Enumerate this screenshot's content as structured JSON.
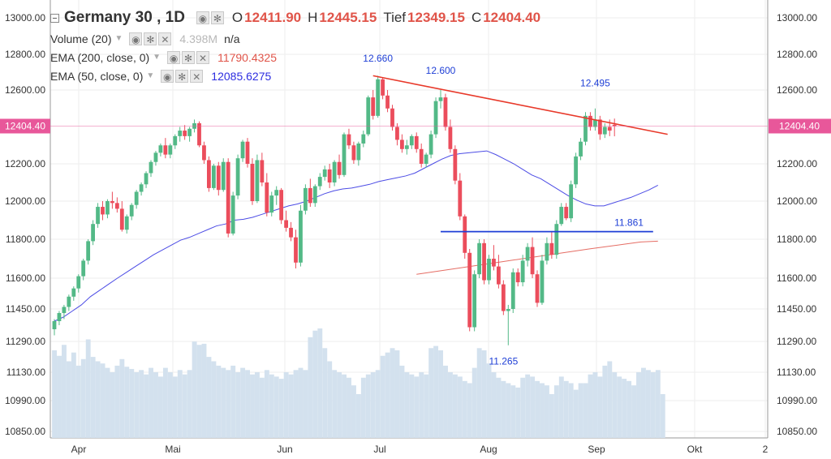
{
  "header": {
    "symbol_label": "Germany 30 , 1D",
    "ohlc": [
      {
        "key": "O",
        "value": "12411.90"
      },
      {
        "key": "H",
        "value": "12445.15"
      },
      {
        "key": "Tief",
        "value": "12349.15"
      },
      {
        "key": "C",
        "value": "12404.40"
      }
    ],
    "indicators": [
      {
        "label": "Volume (20)",
        "value": "4.398M",
        "value2": "n/a",
        "color": "#b8b8b8"
      },
      {
        "label": "EMA (200, close, 0)",
        "value": "11790.4325",
        "color": "#e05449"
      },
      {
        "label": "EMA (50, close, 0)",
        "value": "12085.6275",
        "color": "#2d2de0"
      }
    ]
  },
  "chart_data": {
    "type": "candlestick",
    "instrument": "Germany 30",
    "timeframe": "1D",
    "price_axis": {
      "ticks": [
        "13000.00",
        "12800.00",
        "12600.00",
        "12200.00",
        "12000.00",
        "11800.00",
        "11600.00",
        "11450.00",
        "11290.00",
        "11130.00",
        "10990.00",
        "10850.00"
      ],
      "values": [
        13000,
        12800,
        12600,
        12200,
        12000,
        11800,
        11600,
        11450,
        11290,
        11130,
        10990,
        10850
      ]
    },
    "time_axis": {
      "labels": [
        "Apr",
        "Mai",
        "Jun",
        "Jul",
        "Aug",
        "Sep",
        "Okt",
        "2"
      ]
    },
    "last_price": {
      "value": 12404.4,
      "label": "12404.40",
      "color": "#e8579a"
    },
    "colors": {
      "up": "#53b987",
      "down": "#eb4d5c",
      "volume": "#d3e1ee",
      "ema200": "#e05449",
      "ema50": "#2d2de0",
      "grid": "#eeeeee",
      "trendline": "#e8392a",
      "support": "#1f3fd6"
    },
    "candles": [
      [
        11350,
        11400,
        11320,
        11390
      ],
      [
        11390,
        11440,
        11370,
        11430
      ],
      [
        11430,
        11470,
        11400,
        11460
      ],
      [
        11460,
        11520,
        11440,
        11510
      ],
      [
        11510,
        11560,
        11490,
        11550
      ],
      [
        11550,
        11620,
        11530,
        11610
      ],
      [
        11610,
        11700,
        11590,
        11690
      ],
      [
        11690,
        11800,
        11670,
        11790
      ],
      [
        11790,
        11900,
        11770,
        11880
      ],
      [
        11880,
        11990,
        11860,
        11970
      ],
      [
        11970,
        12000,
        11900,
        11930
      ],
      [
        11930,
        12010,
        11910,
        12000
      ],
      [
        12000,
        12050,
        11960,
        11990
      ],
      [
        11990,
        12020,
        11940,
        11960
      ],
      [
        11960,
        12000,
        11840,
        11850
      ],
      [
        11850,
        11930,
        11830,
        11920
      ],
      [
        11920,
        11990,
        11900,
        11980
      ],
      [
        11980,
        12060,
        11960,
        12050
      ],
      [
        12050,
        12100,
        12030,
        12090
      ],
      [
        12090,
        12160,
        12070,
        12150
      ],
      [
        12150,
        12220,
        12130,
        12210
      ],
      [
        12210,
        12270,
        12190,
        12260
      ],
      [
        12260,
        12310,
        12240,
        12300
      ],
      [
        12300,
        12340,
        12230,
        12250
      ],
      [
        12250,
        12310,
        12230,
        12300
      ],
      [
        12300,
        12360,
        12280,
        12350
      ],
      [
        12350,
        12400,
        12320,
        12380
      ],
      [
        12380,
        12410,
        12330,
        12350
      ],
      [
        12350,
        12400,
        12320,
        12390
      ],
      [
        12390,
        12440,
        12370,
        12420
      ],
      [
        12420,
        12430,
        12290,
        12300
      ],
      [
        12300,
        12320,
        12200,
        12220
      ],
      [
        12220,
        12240,
        12050,
        12070
      ],
      [
        12070,
        12200,
        12060,
        12190
      ],
      [
        12190,
        12210,
        12030,
        12060
      ],
      [
        12060,
        12230,
        12050,
        12210
      ],
      [
        12210,
        12230,
        11810,
        11830
      ],
      [
        11830,
        12050,
        11820,
        12030
      ],
      [
        12030,
        12250,
        12010,
        12230
      ],
      [
        12230,
        12330,
        12210,
        12320
      ],
      [
        12320,
        12340,
        12180,
        12200
      ],
      [
        12200,
        12230,
        11980,
        12000
      ],
      [
        12000,
        12250,
        11990,
        12220
      ],
      [
        12220,
        12260,
        12080,
        12100
      ],
      [
        12100,
        12150,
        11920,
        11940
      ],
      [
        11940,
        12050,
        11920,
        12030
      ],
      [
        12030,
        12080,
        11980,
        12060
      ],
      [
        12060,
        12070,
        11880,
        11900
      ],
      [
        11900,
        11950,
        11840,
        11860
      ],
      [
        11860,
        11890,
        11790,
        11810
      ],
      [
        11810,
        11850,
        11650,
        11680
      ],
      [
        11680,
        11980,
        11660,
        11950
      ],
      [
        11950,
        12090,
        11930,
        12070
      ],
      [
        12070,
        12120,
        11970,
        11990
      ],
      [
        11990,
        12090,
        11970,
        12080
      ],
      [
        12080,
        12150,
        12060,
        12130
      ],
      [
        12130,
        12190,
        12110,
        12170
      ],
      [
        12170,
        12200,
        12070,
        12100
      ],
      [
        12100,
        12220,
        12080,
        12210
      ],
      [
        12210,
        12250,
        12120,
        12140
      ],
      [
        12140,
        12370,
        12130,
        12360
      ],
      [
        12360,
        12390,
        12280,
        12300
      ],
      [
        12300,
        12320,
        12200,
        12220
      ],
      [
        12220,
        12320,
        12190,
        12310
      ],
      [
        12310,
        12380,
        12290,
        12360
      ],
      [
        12360,
        12570,
        12350,
        12560
      ],
      [
        12560,
        12600,
        12440,
        12460
      ],
      [
        12460,
        12680,
        12450,
        12660
      ],
      [
        12660,
        12670,
        12550,
        12570
      ],
      [
        12570,
        12600,
        12480,
        12500
      ],
      [
        12500,
        12520,
        12380,
        12400
      ],
      [
        12400,
        12420,
        12300,
        12330
      ],
      [
        12330,
        12360,
        12260,
        12280
      ],
      [
        12280,
        12330,
        12250,
        12300
      ],
      [
        12300,
        12360,
        12280,
        12350
      ],
      [
        12350,
        12370,
        12260,
        12280
      ],
      [
        12280,
        12310,
        12180,
        12200
      ],
      [
        12200,
        12260,
        12180,
        12250
      ],
      [
        12250,
        12380,
        12230,
        12360
      ],
      [
        12360,
        12560,
        12340,
        12540
      ],
      [
        12540,
        12600,
        12500,
        12560
      ],
      [
        12560,
        12580,
        12380,
        12400
      ],
      [
        12400,
        12440,
        12260,
        12280
      ],
      [
        12280,
        12300,
        12090,
        12110
      ],
      [
        12110,
        12150,
        11900,
        11920
      ],
      [
        11920,
        11930,
        11700,
        11730
      ],
      [
        11730,
        11750,
        11340,
        11360
      ],
      [
        11360,
        11640,
        11340,
        11620
      ],
      [
        11620,
        11800,
        11600,
        11780
      ],
      [
        11780,
        11800,
        11570,
        11590
      ],
      [
        11590,
        11720,
        11570,
        11700
      ],
      [
        11700,
        11770,
        11640,
        11660
      ],
      [
        11660,
        11720,
        11550,
        11570
      ],
      [
        11570,
        11590,
        11420,
        11440
      ],
      [
        11440,
        11470,
        11270,
        11450
      ],
      [
        11450,
        11650,
        11430,
        11630
      ],
      [
        11630,
        11650,
        11560,
        11580
      ],
      [
        11580,
        11720,
        11560,
        11690
      ],
      [
        11690,
        11780,
        11660,
        11760
      ],
      [
        11760,
        11810,
        11600,
        11620
      ],
      [
        11620,
        11640,
        11460,
        11480
      ],
      [
        11480,
        11720,
        11470,
        11690
      ],
      [
        11690,
        11810,
        11670,
        11780
      ],
      [
        11780,
        11840,
        11700,
        11720
      ],
      [
        11720,
        11900,
        11700,
        11880
      ],
      [
        11880,
        11990,
        11870,
        11970
      ],
      [
        11970,
        11990,
        11900,
        11910
      ],
      [
        11910,
        12110,
        11890,
        12090
      ],
      [
        12090,
        12260,
        12070,
        12240
      ],
      [
        12240,
        12340,
        12220,
        12320
      ],
      [
        12320,
        12480,
        12300,
        12460
      ],
      [
        12460,
        12480,
        12380,
        12400
      ],
      [
        12400,
        12500,
        12380,
        12440
      ],
      [
        12440,
        12460,
        12330,
        12360
      ],
      [
        12360,
        12420,
        12340,
        12400
      ],
      [
        12400,
        12440,
        12350,
        12380
      ],
      [
        12411.9,
        12445.15,
        12349.15,
        12404.4
      ]
    ],
    "ema200": [
      11620,
      11633,
      11646,
      11659,
      11672,
      11685,
      11698,
      11711,
      11724,
      11737,
      11750,
      11762,
      11774,
      11786,
      11790
    ],
    "ema50": [
      11390,
      11410,
      11440,
      11470,
      11510,
      11540,
      11570,
      11600,
      11630,
      11660,
      11690,
      11720,
      11745,
      11770,
      11795,
      11810,
      11830,
      11850,
      11870,
      11880,
      11900,
      11905,
      11915,
      11930,
      11945,
      11960,
      11975,
      11985,
      12000,
      12020,
      12040,
      12055,
      12065,
      12070,
      12080,
      12090,
      12105,
      12115,
      12125,
      12135,
      12150,
      12175,
      12200,
      12225,
      12245,
      12255,
      12260,
      12265,
      12270,
      12250,
      12225,
      12200,
      12170,
      12140,
      12120,
      12090,
      12060,
      12030,
      12005,
      11985,
      11975,
      11975,
      11990,
      12005,
      12020,
      12040,
      12060,
      12085
    ],
    "volume": [
      0.8,
      0.75,
      0.85,
      0.7,
      0.78,
      0.66,
      0.72,
      0.9,
      0.74,
      0.7,
      0.68,
      0.64,
      0.6,
      0.66,
      0.72,
      0.65,
      0.63,
      0.6,
      0.62,
      0.58,
      0.64,
      0.6,
      0.56,
      0.64,
      0.6,
      0.56,
      0.62,
      0.58,
      0.62,
      0.88,
      0.85,
      0.86,
      0.74,
      0.7,
      0.66,
      0.64,
      0.62,
      0.66,
      0.6,
      0.64,
      0.62,
      0.58,
      0.6,
      0.55,
      0.62,
      0.58,
      0.56,
      0.54,
      0.6,
      0.58,
      0.62,
      0.64,
      0.62,
      0.92,
      0.98,
      1.0,
      0.82,
      0.7,
      0.62,
      0.6,
      0.58,
      0.55,
      0.48,
      0.4,
      0.55,
      0.58,
      0.6,
      0.62,
      0.75,
      0.78,
      0.82,
      0.8,
      0.66,
      0.6,
      0.58,
      0.56,
      0.6,
      0.58,
      0.82,
      0.84,
      0.8,
      0.66,
      0.6,
      0.58,
      0.56,
      0.52,
      0.5,
      0.64,
      0.82,
      0.8,
      0.68,
      0.6,
      0.55,
      0.52,
      0.5,
      0.48,
      0.46,
      0.55,
      0.58,
      0.56,
      0.52,
      0.5,
      0.48,
      0.4,
      0.48,
      0.56,
      0.52,
      0.5,
      0.44,
      0.5,
      0.5,
      0.58,
      0.6,
      0.56,
      0.66,
      0.7,
      0.6,
      0.56,
      0.54,
      0.52,
      0.48,
      0.6,
      0.64,
      0.62,
      0.6,
      0.62,
      0.4
    ],
    "annotations": [
      {
        "text": "12.660",
        "x_candle": 67,
        "price": 12760
      },
      {
        "text": "12.600",
        "x_candle": 80,
        "price": 12690
      },
      {
        "text": "12.495",
        "x_candle": 112,
        "price": 12620
      },
      {
        "text": "11.861",
        "x_candle": 119,
        "price": 11870
      },
      {
        "text": "11.265",
        "x_candle": 93,
        "price": 11170
      }
    ],
    "trendline": {
      "from": {
        "candle": 66,
        "price": 12680
      },
      "to": {
        "candle": 127,
        "price": 12360
      }
    },
    "support_line": {
      "from_candle": 80,
      "to_candle": 124,
      "price": 11840
    }
  }
}
